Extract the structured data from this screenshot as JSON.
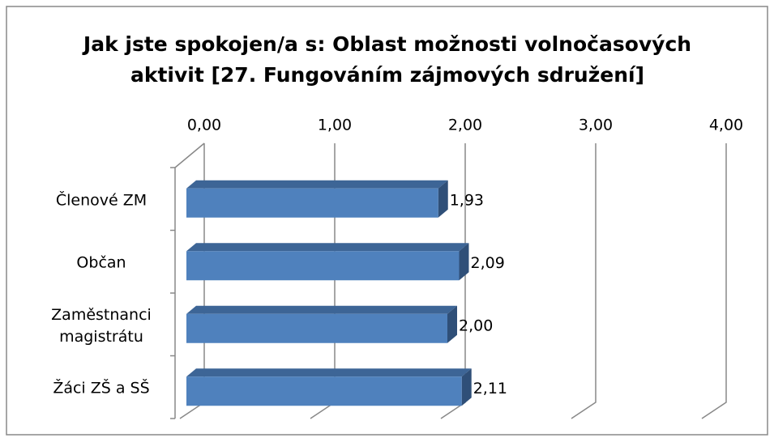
{
  "chart_data": {
    "type": "bar3d_horizontal",
    "title": "Jak jste spokojen/a s: Oblast možnosti volnočasových aktivit [27. Fungováním zájmových sdružení]",
    "categories": [
      "Členové ZM",
      "Občan",
      "Zaměstnanci magistrátu",
      "Žáci ZŠ a SŠ"
    ],
    "values": [
      1.93,
      2.09,
      2.0,
      2.11
    ],
    "value_labels": [
      "1,93",
      "2,09",
      "2,00",
      "2,11"
    ],
    "color": "#4f81bd",
    "xlim": [
      0,
      4
    ],
    "xticks": [
      {
        "value": 0,
        "label": "0,00"
      },
      {
        "value": 1,
        "label": "1,00"
      },
      {
        "value": 2,
        "label": "2,00"
      },
      {
        "value": 3,
        "label": "3,00"
      },
      {
        "value": 4,
        "label": "4,00"
      }
    ],
    "grid": true
  }
}
